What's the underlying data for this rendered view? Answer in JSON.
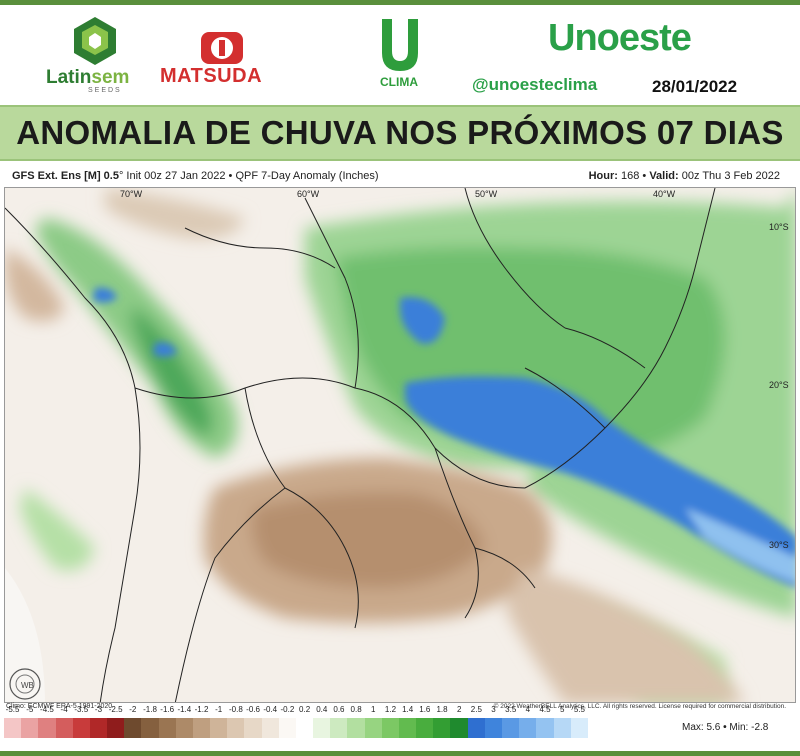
{
  "header": {
    "latinsem_a": "Latin",
    "latinsem_b": "sem",
    "latinsem_sub": "SEEDS",
    "matsuda": "MATSUDA",
    "clima": "CLIMA",
    "unoeste": "Unoeste",
    "handle": "@unoesteclima",
    "date": "28/01/2022"
  },
  "title": "ANOMALIA DE CHUVA NOS PRÓXIMOS 07 DIAS",
  "map": {
    "model_bold": "GFS Ext. Ens [M] 0.5",
    "model_rest": "° Init 00z 27 Jan 2022 • QPF 7-Day Anomaly (Inches)",
    "hour_label": "Hour:",
    "hour_value": "168",
    "valid_label": "Valid:",
    "valid_value": "00z Thu 3 Feb 2022",
    "lon_labels": [
      "70°W",
      "60°W",
      "50°W",
      "40°W"
    ],
    "lat_labels": [
      "10°S",
      "20°S",
      "30°S"
    ],
    "logo_text": "WB",
    "clim_note": "Climo: ECMWF ERA-5 1991-2020",
    "copyright": "© 2022 WeatherBELL Analytics, LLC. All rights reserved. License required for commercial distribution.",
    "max_label": "Max:",
    "max_value": "5.6",
    "min_label": "Min:",
    "min_value": "-2.8",
    "colorbar_labels": [
      "-5.5",
      "-5",
      "-4.5",
      "-4",
      "-3.5",
      "-3",
      "-2.5",
      "-2",
      "-1.8",
      "-1.6",
      "-1.4",
      "-1.2",
      "-1",
      "-0.8",
      "-0.6",
      "-0.4",
      "-0.2",
      "0.2",
      "0.4",
      "0.6",
      "0.8",
      "1",
      "1.2",
      "1.4",
      "1.6",
      "1.8",
      "2",
      "2.5",
      "3",
      "3.5",
      "4",
      "4.5",
      "5",
      "5.5"
    ],
    "colorbar_colors": [
      "#f4c6c6",
      "#eaa3a3",
      "#df8080",
      "#d45d5d",
      "#c83b3b",
      "#b02828",
      "#8f1c1c",
      "#6e4a2e",
      "#85603f",
      "#9a7552",
      "#ad8a68",
      "#bf9f80",
      "#cfb499",
      "#dcc7b1",
      "#e7d8c7",
      "#f0e7dc",
      "#fbf8f4",
      "#ffffff",
      "#e8f5e0",
      "#cdeac0",
      "#b2dfa0",
      "#97d481",
      "#7cc864",
      "#62bb4f",
      "#49ad3e",
      "#339e33",
      "#1f8a2e",
      "#2f6fd0",
      "#3f84dc",
      "#5a99e4",
      "#76aeeb",
      "#94c3f1",
      "#b6d8f6",
      "#d8ecfb"
    ]
  }
}
